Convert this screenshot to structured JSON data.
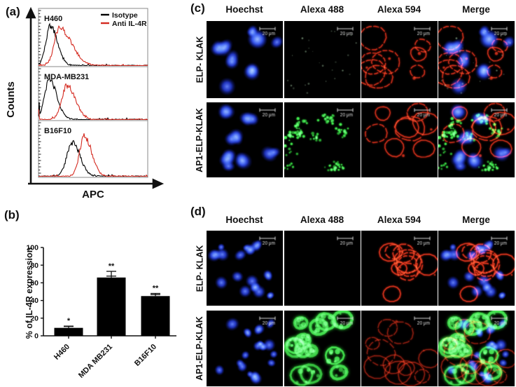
{
  "figure": {
    "panel_tags": {
      "a": "(a)",
      "b": "(b)",
      "c": "(c)",
      "d": "(d)"
    }
  },
  "chart_data": [
    {
      "id": "flow-cytometry",
      "panel": "a",
      "type": "histogram-overlay",
      "xlabel": "APC",
      "ylabel": "Counts",
      "legend": [
        {
          "label": "Isotype",
          "color": "#000000"
        },
        {
          "label": "Anti IL-4R",
          "color": "#d42a20"
        }
      ],
      "subpanels": [
        {
          "name": "H460",
          "series": [
            {
              "name": "Isotype",
              "color": "#000000",
              "peak_frac": 0.11,
              "sigma_frac": 0.042,
              "rel_height": 0.84,
              "tail": 1.5
            },
            {
              "name": "Anti IL-4R",
              "color": "#d42a20",
              "peak_frac": 0.19,
              "sigma_frac": 0.046,
              "rel_height": 0.8,
              "tail": 2.4
            }
          ]
        },
        {
          "name": "MDA-MB231",
          "series": [
            {
              "name": "Isotype",
              "color": "#000000",
              "peak_frac": 0.1,
              "sigma_frac": 0.045,
              "rel_height": 0.92,
              "tail": 1.5
            },
            {
              "name": "Anti IL-4R",
              "color": "#d42a20",
              "peak_frac": 0.26,
              "sigma_frac": 0.048,
              "rel_height": 0.8,
              "tail": 1.6
            }
          ]
        },
        {
          "name": "B16F10",
          "series": [
            {
              "name": "Isotype",
              "color": "#000000",
              "peak_frac": 0.31,
              "sigma_frac": 0.05,
              "rel_height": 0.74,
              "tail": 1.4
            },
            {
              "name": "Anti IL-4R",
              "color": "#d42a20",
              "peak_frac": 0.42,
              "sigma_frac": 0.044,
              "rel_height": 0.88,
              "tail": 1.5
            }
          ]
        }
      ]
    },
    {
      "id": "il4r-expression",
      "panel": "b",
      "type": "bar",
      "categories": [
        "H460",
        "MDA MB231",
        "B16F10"
      ],
      "values": [
        9,
        66,
        45
      ],
      "errors": [
        2,
        7,
        3
      ],
      "significance": [
        "*",
        "**",
        "**"
      ],
      "ylabel": "% of IL-4R expression",
      "ylim": [
        0,
        100
      ],
      "yticks": [
        0,
        20,
        40,
        60,
        80,
        100
      ],
      "bar_color": "#000000"
    }
  ],
  "microscopy": {
    "scale_bar_label": "20 μm",
    "colors": {
      "hoechst_blue": "#2a3fe0",
      "alexa488_green": "#2ecc38",
      "alexa594_red": "#d02818",
      "background": "#000000"
    },
    "c": {
      "columns": [
        "Hoechst",
        "Alexa 488",
        "Alexa 594",
        "Merge"
      ],
      "rows": [
        {
          "label": "ELP- KLAK",
          "channels": [
            "nuclei",
            "sparse_dots",
            "membranes",
            "merge"
          ]
        },
        {
          "label": "AP1-ELP-KLAK",
          "channels": [
            "nuclei",
            "speckles",
            "membranes",
            "merge"
          ]
        }
      ]
    },
    "d": {
      "columns": [
        "Hoechst",
        "Alexa 488",
        "Alexa 594",
        "Merge"
      ],
      "rows": [
        {
          "label": "ELP- KLAK",
          "channels": [
            "nuclei",
            "empty",
            "membranes_round",
            "merge"
          ]
        },
        {
          "label": "AP1-ELP-KLAK",
          "channels": [
            "nuclei",
            "green_cells",
            "membranes_round_faint",
            "merge"
          ]
        }
      ]
    }
  }
}
